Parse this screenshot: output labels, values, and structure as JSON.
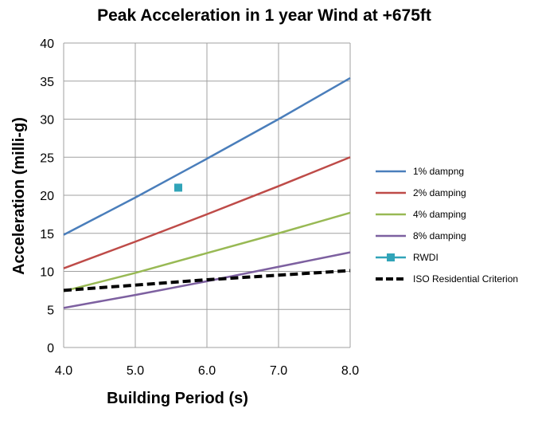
{
  "chart_data": {
    "type": "line",
    "title": "Peak Acceleration in 1 year Wind at +675ft",
    "xlabel": "Building Period (s)",
    "ylabel": "Acceleration (milli-g)",
    "xlim": [
      4.0,
      8.0
    ],
    "ylim": [
      0,
      40
    ],
    "x_ticks": [
      "4.0",
      "5.0",
      "6.0",
      "7.0",
      "8.0"
    ],
    "y_ticks": [
      "0",
      "5",
      "10",
      "15",
      "20",
      "25",
      "30",
      "35",
      "40"
    ],
    "grid": true,
    "legend_position": "right",
    "series": [
      {
        "name": "1% dampng",
        "color": "#4a7ebb",
        "style": "line",
        "x": [
          4.0,
          5.0,
          6.0,
          7.0,
          8.0
        ],
        "y": [
          14.8,
          19.7,
          24.8,
          30.0,
          35.4
        ]
      },
      {
        "name": "2% damping",
        "color": "#be4b48",
        "style": "line",
        "x": [
          4.0,
          5.0,
          6.0,
          7.0,
          8.0
        ],
        "y": [
          10.4,
          13.9,
          17.5,
          21.2,
          25.0
        ]
      },
      {
        "name": "4% damping",
        "color": "#98b954",
        "style": "line",
        "x": [
          4.0,
          5.0,
          6.0,
          7.0,
          8.0
        ],
        "y": [
          7.4,
          9.8,
          12.4,
          15.0,
          17.7
        ]
      },
      {
        "name": "8% damping",
        "color": "#7d60a0",
        "style": "line",
        "x": [
          4.0,
          5.0,
          6.0,
          7.0,
          8.0
        ],
        "y": [
          5.2,
          6.9,
          8.7,
          10.6,
          12.5
        ]
      },
      {
        "name": "RWDI",
        "color": "#31a4b8",
        "style": "marker",
        "x": [
          5.6
        ],
        "y": [
          21.0
        ]
      },
      {
        "name": "ISO Residential Criterion",
        "color": "#000000",
        "style": "dashed",
        "x": [
          4.0,
          5.0,
          6.0,
          7.0,
          8.0
        ],
        "y": [
          7.5,
          8.2,
          8.9,
          9.5,
          10.1
        ]
      }
    ]
  }
}
